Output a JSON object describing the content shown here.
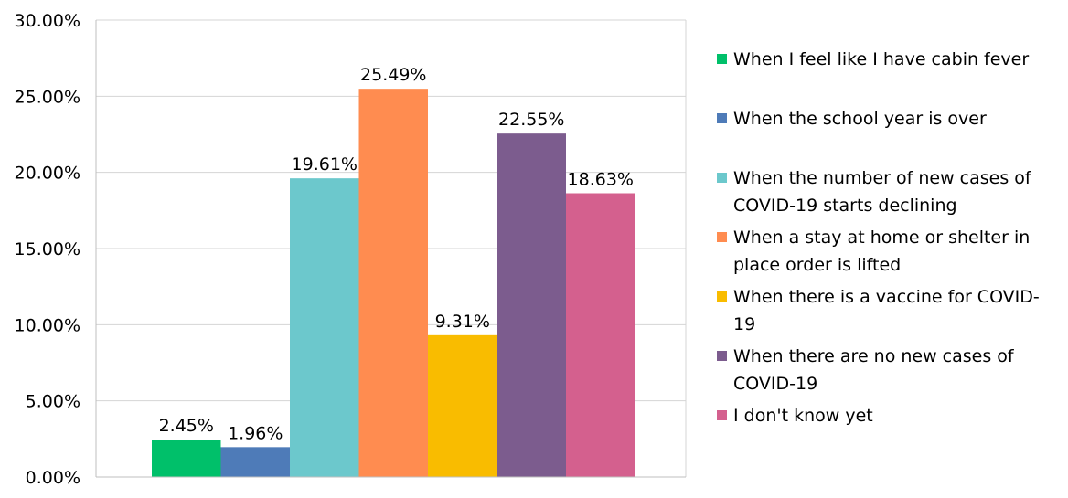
{
  "chart_data": {
    "type": "bar",
    "title": "",
    "xlabel": "",
    "ylabel": "",
    "ylim": [
      0,
      30
    ],
    "yticks": [
      "0.00%",
      "5.00%",
      "10.00%",
      "15.00%",
      "20.00%",
      "25.00%",
      "30.00%"
    ],
    "grid": true,
    "legend_position": "right",
    "series": [
      {
        "name": "When I feel like I have cabin fever",
        "value": 2.45,
        "label": "2.45%",
        "color": "#00c06a"
      },
      {
        "name": "When the school year is over",
        "value": 1.96,
        "label": "1.96%",
        "color": "#4e7bb8"
      },
      {
        "name": "When the number of new cases of COVID-19 starts declining",
        "value": 19.61,
        "label": "19.61%",
        "color": "#6cc8cc"
      },
      {
        "name": "When a stay at home or shelter in place order is lifted",
        "value": 25.49,
        "label": "25.49%",
        "color": "#ff8c50"
      },
      {
        "name": "When there is a vaccine for COVID-19",
        "value": 9.31,
        "label": "9.31%",
        "color": "#f9bc00"
      },
      {
        "name": "When there are no new cases of COVID-19",
        "value": 22.55,
        "label": "22.55%",
        "color": "#7c5c8e"
      },
      {
        "name": "I don't know yet",
        "value": 18.63,
        "label": "18.63%",
        "color": "#d4608e"
      }
    ]
  }
}
